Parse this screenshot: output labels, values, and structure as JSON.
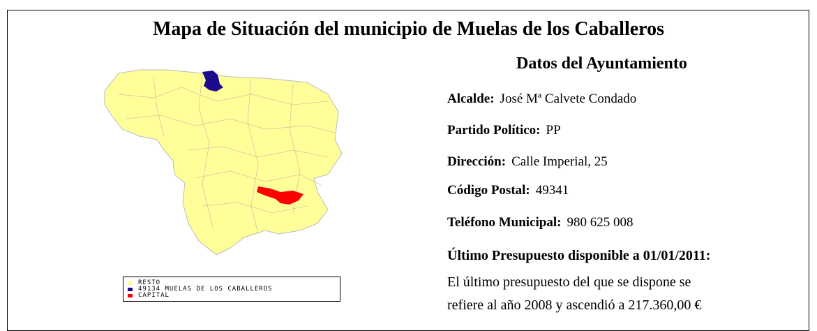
{
  "title": "Mapa de Situación del municipio de Muelas de los Caballeros",
  "map_legend": [
    {
      "label": "RESTO",
      "color": "#ffff99"
    },
    {
      "label": "49134 MUELAS DE LOS CABALLEROS",
      "color": "#1a0a8c"
    },
    {
      "label": "CAPITAL",
      "color": "#ff0000"
    }
  ],
  "section_title": "Datos del Ayuntamiento",
  "details": [
    {
      "label": "Alcalde:",
      "value": "José Mª Calvete Condado"
    },
    {
      "label": "Partido Político:",
      "value": "PP"
    },
    {
      "label": "Dirección:",
      "value": "Calle Imperial, 25"
    },
    {
      "label": "Código Postal:",
      "value": "49341"
    },
    {
      "label": "Teléfono Municipal:",
      "value": "980 625 008"
    }
  ],
  "budget_title": "Último Presupuesto disponible a 01/01/2011:",
  "budget_text": [
    "El último presupuesto del que se dispone se",
    "refiere al año 2008 y ascendió a 217.360,00 €"
  ]
}
